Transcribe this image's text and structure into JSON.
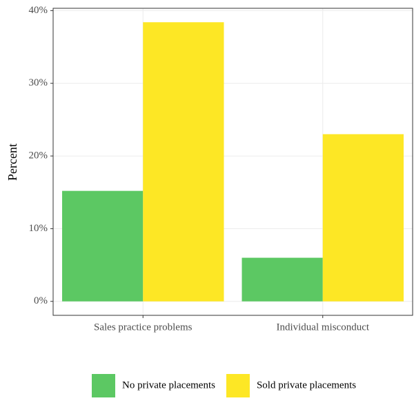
{
  "chart_data": {
    "type": "bar",
    "y_label": "Percent",
    "categories": [
      "Sales practice problems",
      "Individual misconduct"
    ],
    "series": [
      {
        "name": "No private placements",
        "color": "#5cc863",
        "values": [
          15.2,
          6.0
        ]
      },
      {
        "name": "Sold private placements",
        "color": "#fde725",
        "values": [
          38.4,
          23.0
        ]
      }
    ],
    "ylim": [
      -1.92,
      40.32
    ],
    "yticks": [
      {
        "value": 0,
        "label": "0%"
      },
      {
        "value": 10,
        "label": "10%"
      },
      {
        "value": 20,
        "label": "20%"
      },
      {
        "value": 30,
        "label": "30%"
      },
      {
        "value": 40,
        "label": "40%"
      }
    ],
    "grid": true,
    "legend_position": "bottom"
  }
}
